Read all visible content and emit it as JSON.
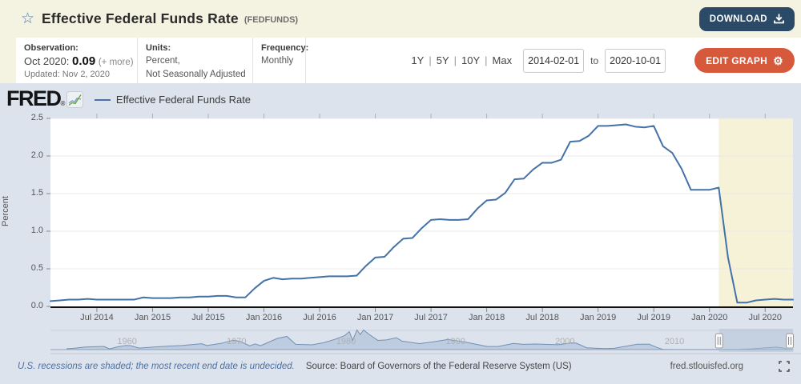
{
  "header": {
    "star_icon": "star-outline",
    "title": "Effective Federal Funds Rate",
    "ticker": "(FEDFUNDS)",
    "download_label": "DOWNLOAD"
  },
  "meta": {
    "observation": {
      "label": "Observation:",
      "date_prefix": "Oct 2020:",
      "value": "0.09",
      "more_link": "(+ more)",
      "updated": "Updated: Nov 2, 2020"
    },
    "units": {
      "label": "Units:",
      "line1": "Percent,",
      "line2": "Not Seasonally Adjusted"
    },
    "frequency": {
      "label": "Frequency:",
      "value": "Monthly"
    }
  },
  "range_controls": {
    "presets": [
      "1Y",
      "5Y",
      "10Y",
      "Max"
    ],
    "separator": "|",
    "from_value": "2014-02-01",
    "to_label": "to",
    "to_value": "2020-10-01",
    "edit_button": "EDIT GRAPH",
    "gear_glyph": "⚙"
  },
  "brand": {
    "logo_text": "FRED",
    "registered": "®",
    "legend_label": "Effective Federal Funds Rate"
  },
  "chart_data": [
    {
      "type": "line",
      "series_name": "Effective Federal Funds Rate",
      "ylabel": "Percent",
      "ylim": [
        0,
        2.5
      ],
      "yticks": [
        "0.0",
        "0.5",
        "1.0",
        "1.5",
        "2.0",
        "2.5"
      ],
      "x_start": "2014-02",
      "x_end": "2020-10",
      "frequency": "monthly",
      "x_tick_labels": [
        "Jul 2014",
        "Jan 2015",
        "Jul 2015",
        "Jan 2016",
        "Jul 2016",
        "Jan 2017",
        "Jul 2017",
        "Jan 2018",
        "Jul 2018",
        "Jan 2019",
        "Jul 2019",
        "Jan 2020",
        "Jul 2020"
      ],
      "x_tick_month_indices": [
        5,
        11,
        17,
        23,
        29,
        35,
        41,
        47,
        53,
        59,
        65,
        71,
        77
      ],
      "values": [
        0.07,
        0.08,
        0.09,
        0.09,
        0.1,
        0.09,
        0.09,
        0.09,
        0.09,
        0.09,
        0.12,
        0.11,
        0.11,
        0.11,
        0.12,
        0.12,
        0.13,
        0.13,
        0.14,
        0.14,
        0.12,
        0.12,
        0.24,
        0.34,
        0.38,
        0.36,
        0.37,
        0.37,
        0.38,
        0.39,
        0.4,
        0.4,
        0.4,
        0.41,
        0.54,
        0.65,
        0.66,
        0.79,
        0.9,
        0.91,
        1.04,
        1.15,
        1.16,
        1.15,
        1.15,
        1.16,
        1.3,
        1.41,
        1.42,
        1.51,
        1.69,
        1.7,
        1.82,
        1.91,
        1.91,
        1.95,
        2.19,
        2.2,
        2.27,
        2.4,
        2.4,
        2.41,
        2.42,
        2.39,
        2.38,
        2.4,
        2.13,
        2.04,
        1.83,
        1.55,
        1.55,
        1.55,
        1.58,
        0.65,
        0.05,
        0.05,
        0.08,
        0.09,
        0.1,
        0.09,
        0.09
      ],
      "recession_band": {
        "start": "2020-02",
        "end": "2020-10",
        "start_index": 72
      },
      "grid": true,
      "legend_position": "top-left"
    },
    {
      "type": "area",
      "role": "range-selector",
      "x_range_years": [
        1953,
        2020.83
      ],
      "ymax": 19.5,
      "decade_labels": [
        "1960",
        "1970",
        "1980",
        "1990",
        "2000",
        "2010"
      ],
      "decade_years": [
        1960,
        1970,
        1980,
        1990,
        2000,
        2010
      ],
      "selection_years": [
        2014.08,
        2020.83
      ],
      "points": [
        [
          1954.5,
          0.85
        ],
        [
          1955.2,
          1.4
        ],
        [
          1956.2,
          2.5
        ],
        [
          1957.6,
          3.0
        ],
        [
          1957.9,
          3.0
        ],
        [
          1958.4,
          0.7
        ],
        [
          1959.2,
          2.8
        ],
        [
          1959.9,
          4.0
        ],
        [
          1960.3,
          3.9
        ],
        [
          1961.1,
          1.45
        ],
        [
          1962.5,
          2.5
        ],
        [
          1963.8,
          3.4
        ],
        [
          1965.0,
          4.0
        ],
        [
          1966.8,
          5.75
        ],
        [
          1967.3,
          4.0
        ],
        [
          1968.6,
          6.1
        ],
        [
          1969.7,
          9.2
        ],
        [
          1970.3,
          8.0
        ],
        [
          1971.2,
          3.7
        ],
        [
          1971.7,
          5.5
        ],
        [
          1972.2,
          3.8
        ],
        [
          1973.7,
          10.8
        ],
        [
          1974.6,
          12.9
        ],
        [
          1975.4,
          5.2
        ],
        [
          1976.9,
          4.65
        ],
        [
          1978.0,
          6.8
        ],
        [
          1979.0,
          10.1
        ],
        [
          1979.9,
          13.8
        ],
        [
          1980.3,
          17.6
        ],
        [
          1980.6,
          9.0
        ],
        [
          1981.0,
          19.1
        ],
        [
          1981.3,
          14.7
        ],
        [
          1981.6,
          19.1
        ],
        [
          1982.1,
          14.9
        ],
        [
          1982.9,
          9.0
        ],
        [
          1983.7,
          9.5
        ],
        [
          1984.6,
          11.6
        ],
        [
          1985.1,
          8.3
        ],
        [
          1986.7,
          5.9
        ],
        [
          1987.8,
          7.3
        ],
        [
          1989.3,
          9.85
        ],
        [
          1990.9,
          7.3
        ],
        [
          1992.9,
          3.0
        ],
        [
          1993.9,
          3.0
        ],
        [
          1995.3,
          6.05
        ],
        [
          1996.2,
          5.2
        ],
        [
          1997.3,
          5.5
        ],
        [
          1998.8,
          5.0
        ],
        [
          1999.4,
          4.75
        ],
        [
          2000.6,
          6.55
        ],
        [
          2001.0,
          6.4
        ],
        [
          2002.0,
          1.75
        ],
        [
          2003.6,
          1.0
        ],
        [
          2004.5,
          1.3
        ],
        [
          2006.6,
          5.25
        ],
        [
          2007.7,
          5.25
        ],
        [
          2008.4,
          2.1
        ],
        [
          2008.95,
          0.15
        ],
        [
          2010.0,
          0.12
        ],
        [
          2012.0,
          0.1
        ],
        [
          2014.0,
          0.08
        ],
        [
          2015.95,
          0.25
        ],
        [
          2017.0,
          0.7
        ],
        [
          2018.0,
          1.45
        ],
        [
          2019.3,
          2.4
        ],
        [
          2019.95,
          1.55
        ],
        [
          2020.25,
          0.65
        ],
        [
          2020.35,
          0.05
        ],
        [
          2020.83,
          0.09
        ]
      ]
    }
  ],
  "footer": {
    "recessions_note": "U.S. recessions are shaded; the most recent end date is undecided.",
    "source": "Source: Board of Governors of the Federal Reserve System (US)",
    "site": "fred.stlouisfed.org"
  },
  "colors": {
    "cream_bg": "#f4f3e2",
    "panel_bg": "#dce3ed",
    "line": "#4472a6",
    "recession_band": "#f5f2d8",
    "download_btn": "#2b4a68",
    "edit_btn": "#d6593c",
    "mini_fill": "#b9c8dc",
    "mini_line": "#7490b2",
    "grid": "#e8e8e8"
  }
}
